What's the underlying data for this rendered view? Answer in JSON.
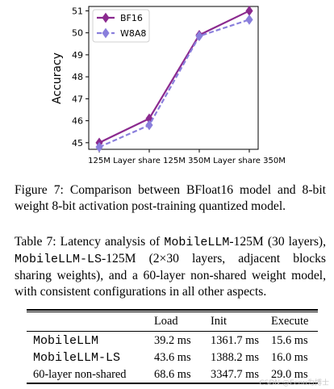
{
  "chart_data": {
    "type": "line",
    "categories": [
      "125M",
      "Layer share 125M",
      "350M",
      "Layer share 350M"
    ],
    "series": [
      {
        "name": "BF16",
        "values": [
          45.0,
          46.1,
          49.9,
          51.0
        ],
        "color": "#8b2a8f",
        "style": "solid",
        "marker": "diamond"
      },
      {
        "name": "W8A8",
        "values": [
          44.8,
          45.8,
          49.85,
          50.6
        ],
        "color": "#8a7fdc",
        "style": "dashed",
        "marker": "diamond"
      }
    ],
    "xlabel": "",
    "ylabel": "Accuracy",
    "ylim": [
      44.7,
      51.2
    ],
    "yticks": [
      45,
      46,
      47,
      48,
      49,
      50,
      51
    ],
    "legend": "top-left",
    "grid": false
  },
  "figure_caption": "Figure 7: Comparison between BFloat16 model and 8-bit weight 8-bit activation post-training quantized model.",
  "table_caption": {
    "prefix": "Table 7:",
    "t1": " Latency analysis of ",
    "m1": "MobileLLM",
    "t2": "-125M (30 layers), ",
    "m2": "MobileLLM-LS",
    "t3": "-125M (2×30 layers, adjacent blocks sharing weights), and a 60-layer non-shared weight model, with consistent configurations in all other aspects."
  },
  "table": {
    "headers": [
      "",
      "Load",
      "Init",
      "Execute"
    ],
    "rows": [
      {
        "name": "MobileLLM",
        "mono": true,
        "load": "39.2 ms",
        "init": "1361.7 ms",
        "execute": "15.6 ms"
      },
      {
        "name": "MobileLLM-LS",
        "mono": true,
        "load": "43.6 ms",
        "init": "1388.2 ms",
        "execute": "16.0 ms"
      },
      {
        "name": "60-layer non-shared",
        "mono": false,
        "load": "68.6 ms",
        "init": "3347.7 ms",
        "execute": "29.0 ms"
      }
    ]
  },
  "watermark": "CSDN @Ecnu为博士"
}
